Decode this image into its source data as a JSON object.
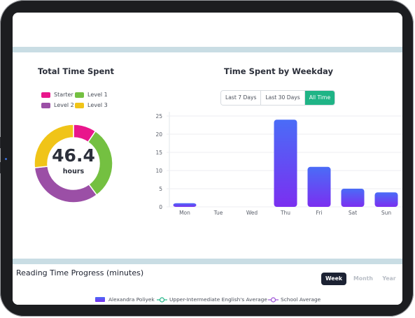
{
  "total_time": {
    "title": "Total Time Spent",
    "value": "46.4",
    "unit": "hours",
    "legend": [
      {
        "label": "Starter",
        "color": "#e9168c"
      },
      {
        "label": "Level 1",
        "color": "#74c041"
      },
      {
        "label": "Level 2",
        "color": "#9b4fa6"
      },
      {
        "label": "Level 3",
        "color": "#f0c418"
      }
    ]
  },
  "weekday": {
    "title": "Time Spent by Weekday",
    "filters": [
      {
        "label": "Last 7 Days",
        "active": false
      },
      {
        "label": "Last 30 Days",
        "active": false
      },
      {
        "label": "All Time",
        "active": true
      }
    ]
  },
  "chart_data": [
    {
      "type": "pie",
      "labels": [
        "Starter",
        "Level 1",
        "Level 2",
        "Level 3"
      ],
      "values": [
        4.4,
        14.1,
        15.5,
        12.4
      ],
      "colors": [
        "#e9168c",
        "#74c041",
        "#9b4fa6",
        "#f0c418"
      ]
    },
    {
      "type": "bar",
      "categories": [
        "Mon",
        "Tue",
        "Wed",
        "Thu",
        "Fri",
        "Sat",
        "Sun"
      ],
      "values": [
        1,
        0,
        0,
        24,
        11,
        5,
        4
      ],
      "ylim": [
        0,
        25
      ],
      "yticks": [
        0,
        5,
        10,
        15,
        20,
        25
      ],
      "grid": true,
      "gradient": [
        "#4a6cf7",
        "#7b2ff0"
      ]
    }
  ],
  "reading": {
    "title": "Reading Time Progress (minutes)",
    "periods": [
      {
        "label": "Week",
        "active": true
      },
      {
        "label": "Month",
        "active": false
      },
      {
        "label": "Year",
        "active": false
      }
    ],
    "legend": [
      {
        "label": "Alexandra Poliyek",
        "color": "#6a4cf0"
      },
      {
        "label": "Upper-Intermediate English's Average",
        "color": "#1fb486"
      },
      {
        "label": "School Average",
        "color": "#9b4fd6"
      }
    ]
  }
}
